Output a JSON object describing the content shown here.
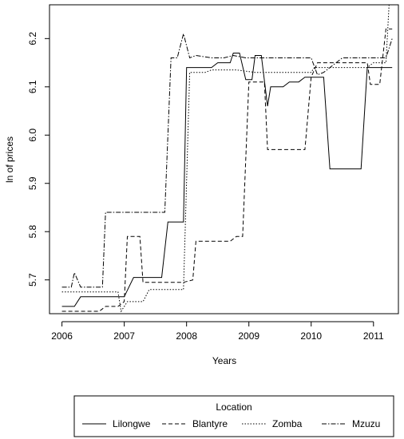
{
  "chart_data": {
    "type": "line",
    "title": "",
    "xlabel": "Years",
    "ylabel": "ln of prices",
    "xlim": [
      2005.8,
      2011.4
    ],
    "ylim": [
      5.63,
      6.27
    ],
    "x_ticks": [
      2006,
      2007,
      2008,
      2009,
      2010,
      2011
    ],
    "x_tick_labels": [
      "2006",
      "2007",
      "2008",
      "2009",
      "2010",
      "2011"
    ],
    "y_ticks": [
      5.7,
      5.8,
      5.9,
      6.0,
      6.1,
      6.2
    ],
    "y_tick_labels": [
      "5.7",
      "5.8",
      "5.9",
      "6.0",
      "6.1",
      "6.2"
    ],
    "grid": false,
    "legend": {
      "title": "Location",
      "placement": "bottom"
    },
    "series": [
      {
        "name": "Lilongwe",
        "dash": "solid",
        "points": [
          [
            2006.0,
            5.645
          ],
          [
            2006.2,
            5.645
          ],
          [
            2006.3,
            5.665
          ],
          [
            2006.8,
            5.665
          ],
          [
            2007.0,
            5.665
          ],
          [
            2007.15,
            5.705
          ],
          [
            2007.6,
            5.705
          ],
          [
            2007.7,
            5.82
          ],
          [
            2007.95,
            5.82
          ],
          [
            2008.0,
            6.14
          ],
          [
            2008.4,
            6.14
          ],
          [
            2008.5,
            6.15
          ],
          [
            2008.7,
            6.15
          ],
          [
            2008.75,
            6.17
          ],
          [
            2008.85,
            6.17
          ],
          [
            2008.95,
            6.115
          ],
          [
            2009.05,
            6.115
          ],
          [
            2009.1,
            6.165
          ],
          [
            2009.2,
            6.165
          ],
          [
            2009.3,
            6.06
          ],
          [
            2009.35,
            6.1
          ],
          [
            2009.55,
            6.1
          ],
          [
            2009.65,
            6.11
          ],
          [
            2009.8,
            6.11
          ],
          [
            2009.9,
            6.12
          ],
          [
            2010.2,
            6.12
          ],
          [
            2010.3,
            5.93
          ],
          [
            2010.8,
            5.93
          ],
          [
            2010.9,
            6.14
          ],
          [
            2011.3,
            6.14
          ]
        ]
      },
      {
        "name": "Blantyre",
        "dash": "dashed",
        "points": [
          [
            2006.0,
            5.635
          ],
          [
            2006.6,
            5.635
          ],
          [
            2006.7,
            5.645
          ],
          [
            2006.9,
            5.645
          ],
          [
            2007.0,
            5.655
          ],
          [
            2007.05,
            5.79
          ],
          [
            2007.25,
            5.79
          ],
          [
            2007.3,
            5.695
          ],
          [
            2007.95,
            5.695
          ],
          [
            2008.1,
            5.7
          ],
          [
            2008.15,
            5.78
          ],
          [
            2008.7,
            5.78
          ],
          [
            2008.8,
            5.79
          ],
          [
            2008.9,
            5.79
          ],
          [
            2009.0,
            6.11
          ],
          [
            2009.25,
            6.11
          ],
          [
            2009.3,
            5.97
          ],
          [
            2009.9,
            5.97
          ],
          [
            2010.0,
            6.12
          ],
          [
            2010.1,
            6.15
          ],
          [
            2010.9,
            6.15
          ],
          [
            2010.95,
            6.105
          ],
          [
            2011.1,
            6.105
          ],
          [
            2011.2,
            6.22
          ],
          [
            2011.3,
            6.22
          ]
        ]
      },
      {
        "name": "Zomba",
        "dash": "dotted",
        "points": [
          [
            2006.0,
            5.675
          ],
          [
            2006.9,
            5.675
          ],
          [
            2006.95,
            5.635
          ],
          [
            2007.05,
            5.655
          ],
          [
            2007.3,
            5.655
          ],
          [
            2007.4,
            5.68
          ],
          [
            2007.95,
            5.68
          ],
          [
            2008.05,
            6.13
          ],
          [
            2008.3,
            6.13
          ],
          [
            2008.4,
            6.135
          ],
          [
            2008.8,
            6.135
          ],
          [
            2009.1,
            6.13
          ],
          [
            2010.0,
            6.13
          ],
          [
            2010.05,
            6.14
          ],
          [
            2010.6,
            6.14
          ],
          [
            2010.9,
            6.14
          ],
          [
            2011.0,
            6.15
          ],
          [
            2011.2,
            6.15
          ],
          [
            2011.25,
            6.27
          ],
          [
            2011.3,
            6.27
          ]
        ]
      },
      {
        "name": "Mzuzu",
        "dash": "dotdash",
        "points": [
          [
            2006.0,
            5.685
          ],
          [
            2006.15,
            5.685
          ],
          [
            2006.2,
            5.715
          ],
          [
            2006.3,
            5.685
          ],
          [
            2006.65,
            5.685
          ],
          [
            2006.7,
            5.84
          ],
          [
            2007.65,
            5.84
          ],
          [
            2007.75,
            6.16
          ],
          [
            2007.85,
            6.16
          ],
          [
            2007.95,
            6.21
          ],
          [
            2008.05,
            6.16
          ],
          [
            2008.15,
            6.165
          ],
          [
            2008.4,
            6.16
          ],
          [
            2008.6,
            6.16
          ],
          [
            2008.75,
            6.165
          ],
          [
            2008.95,
            6.16
          ],
          [
            2010.0,
            6.16
          ],
          [
            2010.1,
            6.125
          ],
          [
            2010.2,
            6.13
          ],
          [
            2010.5,
            6.16
          ],
          [
            2011.2,
            6.16
          ],
          [
            2011.3,
            6.2
          ]
        ]
      }
    ]
  }
}
